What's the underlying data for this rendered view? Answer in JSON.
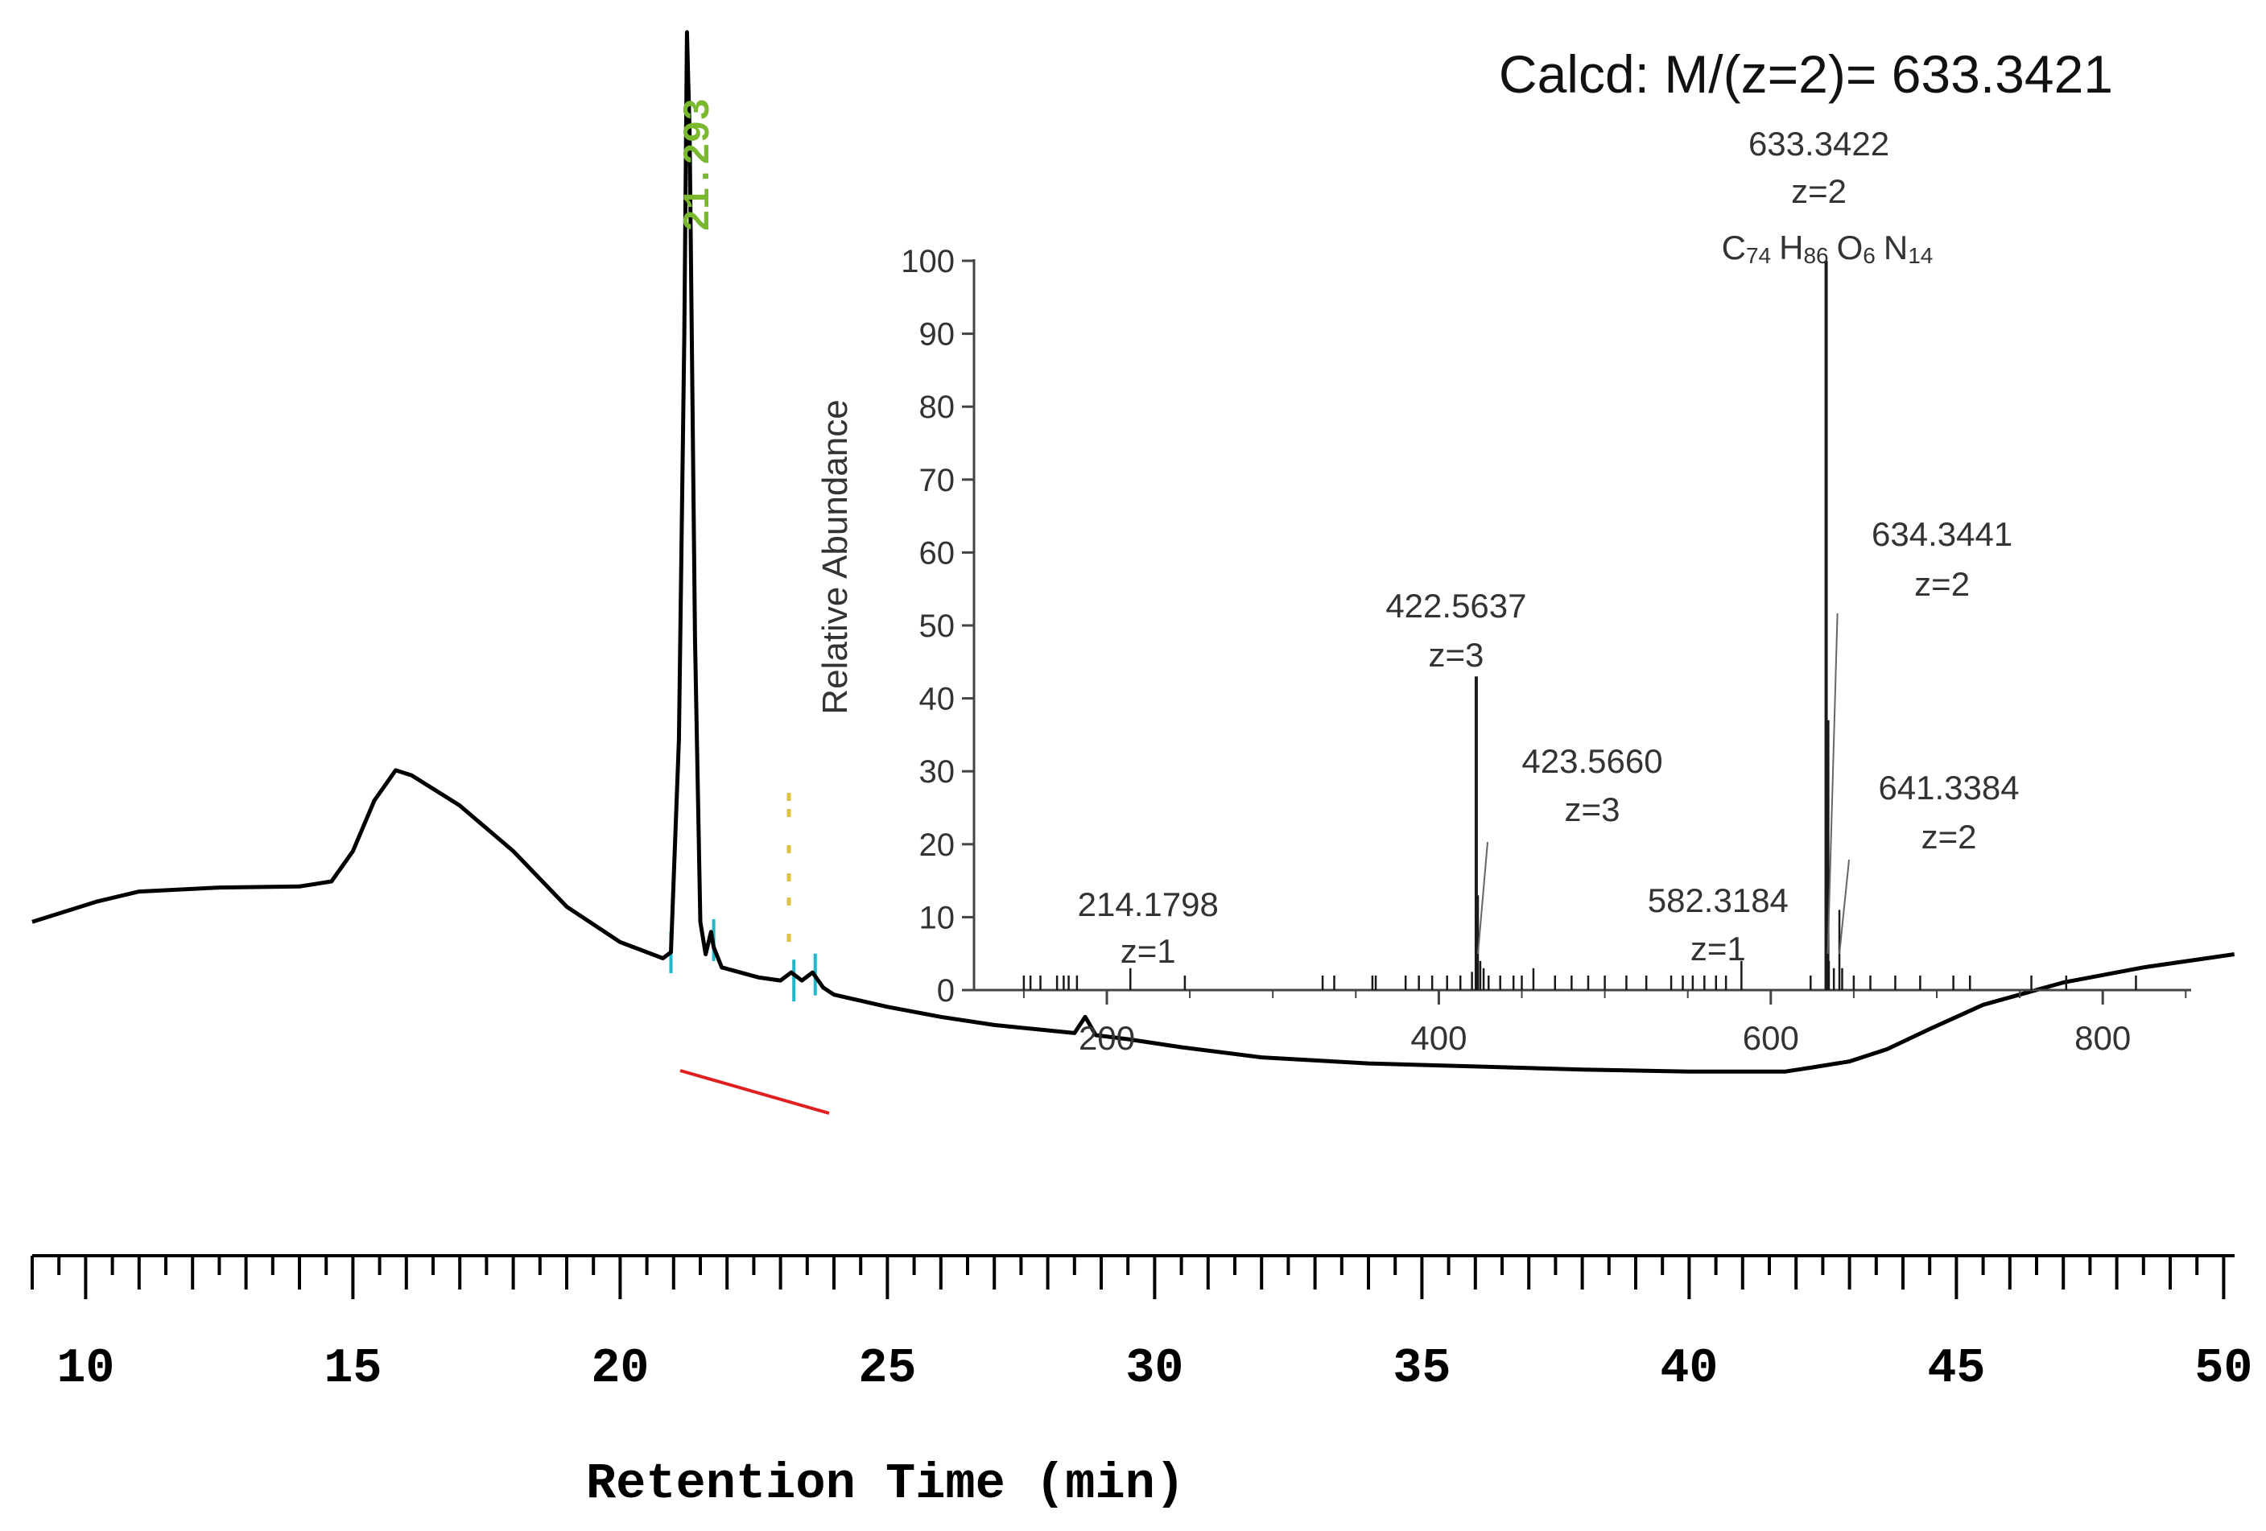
{
  "chart_data": [
    {
      "type": "line",
      "name": "chromatogram",
      "xlabel": "Retention Time (min)",
      "xlim": [
        9,
        50.2
      ],
      "ylim": [
        0,
        100
      ],
      "x_ticks": [
        10,
        15,
        20,
        25,
        30,
        35,
        40,
        45,
        50
      ],
      "trace": [
        [
          9.0,
          12
        ],
        [
          9.6,
          13
        ],
        [
          10.2,
          14
        ],
        [
          11.0,
          15
        ],
        [
          12.5,
          15.4
        ],
        [
          14.0,
          15.5
        ],
        [
          14.6,
          16
        ],
        [
          15.0,
          19
        ],
        [
          15.4,
          24
        ],
        [
          15.8,
          27
        ],
        [
          16.1,
          26.5
        ],
        [
          17.0,
          23.5
        ],
        [
          18.0,
          19
        ],
        [
          19.0,
          13.5
        ],
        [
          20.0,
          10
        ],
        [
          20.8,
          8.4
        ],
        [
          20.95,
          9
        ],
        [
          21.1,
          30
        ],
        [
          21.2,
          70
        ],
        [
          21.25,
          100
        ],
        [
          21.3,
          90
        ],
        [
          21.4,
          40
        ],
        [
          21.5,
          12
        ],
        [
          21.6,
          8.8
        ],
        [
          21.7,
          11
        ],
        [
          21.75,
          9.5
        ],
        [
          21.9,
          7.5
        ],
        [
          22.6,
          6.5
        ],
        [
          23.0,
          6.2
        ],
        [
          23.2,
          7.0
        ],
        [
          23.4,
          6.2
        ],
        [
          23.6,
          7.0
        ],
        [
          23.8,
          5.5
        ],
        [
          24.0,
          4.8
        ],
        [
          25.0,
          3.6
        ],
        [
          26.0,
          2.6
        ],
        [
          27.0,
          1.8
        ],
        [
          28.5,
          1.0
        ],
        [
          28.7,
          2.6
        ],
        [
          28.9,
          0.8
        ],
        [
          29.5,
          0.4
        ],
        [
          30.5,
          -0.4
        ],
        [
          32.0,
          -1.4
        ],
        [
          34.0,
          -2.0
        ],
        [
          36.0,
          -2.3
        ],
        [
          38.0,
          -2.6
        ],
        [
          40.0,
          -2.8
        ],
        [
          41.8,
          -2.8
        ],
        [
          42.3,
          -2.4
        ],
        [
          43.0,
          -1.8
        ],
        [
          43.7,
          -0.6
        ],
        [
          44.5,
          1.4
        ],
        [
          45.5,
          3.8
        ],
        [
          47.0,
          6.0
        ],
        [
          48.5,
          7.5
        ],
        [
          50.2,
          8.8
        ]
      ],
      "peak_label": "21.293",
      "peak_label_color": "#7ab830",
      "minor_peak_label_color": "#e0c040",
      "trace_color": "#000000",
      "baseline_color": "#e02020",
      "marker_color": "#20b8c8"
    },
    {
      "type": "bar",
      "name": "mass-spectrum",
      "title": "Calcd: M/(z=2)= 633.3421",
      "ylabel": "Relative Abundance",
      "xlim": [
        125,
        850
      ],
      "ylim": [
        0,
        100
      ],
      "x_ticks": [
        200,
        400,
        600,
        800
      ],
      "y_ticks": [
        0,
        10,
        20,
        30,
        40,
        50,
        60,
        70,
        80,
        90,
        100
      ],
      "stick_color": "#1a1a1a",
      "peaks": [
        [
          150,
          2
        ],
        [
          154,
          2
        ],
        [
          160,
          2
        ],
        [
          170,
          2
        ],
        [
          174,
          2
        ],
        [
          177,
          2
        ],
        [
          182,
          2
        ],
        [
          214.1798,
          3
        ],
        [
          247,
          2
        ],
        [
          330,
          2
        ],
        [
          337,
          2
        ],
        [
          360,
          2
        ],
        [
          362,
          2
        ],
        [
          380,
          2
        ],
        [
          388,
          2
        ],
        [
          396,
          2
        ],
        [
          405,
          2
        ],
        [
          413,
          2
        ],
        [
          420,
          2.5
        ],
        [
          422.5637,
          43
        ],
        [
          423.566,
          13
        ],
        [
          425,
          4
        ],
        [
          427,
          3
        ],
        [
          430,
          2
        ],
        [
          437,
          2
        ],
        [
          445,
          2
        ],
        [
          450,
          2
        ],
        [
          457,
          3
        ],
        [
          470,
          2
        ],
        [
          480,
          2
        ],
        [
          490,
          2
        ],
        [
          500,
          2
        ],
        [
          513,
          2
        ],
        [
          525,
          2
        ],
        [
          540,
          2
        ],
        [
          547,
          2
        ],
        [
          553,
          2
        ],
        [
          560,
          2
        ],
        [
          567,
          2
        ],
        [
          573,
          2
        ],
        [
          582.3184,
          4
        ],
        [
          624,
          2
        ],
        [
          633.3422,
          100
        ],
        [
          634.3441,
          37
        ],
        [
          635,
          4
        ],
        [
          638,
          3
        ],
        [
          641.3384,
          11
        ],
        [
          643,
          3
        ],
        [
          650,
          2
        ],
        [
          660,
          2
        ],
        [
          675,
          2
        ],
        [
          690,
          2
        ],
        [
          710,
          2
        ],
        [
          720,
          2
        ],
        [
          757,
          2
        ],
        [
          778,
          2
        ],
        [
          820,
          2
        ]
      ],
      "annotations": [
        {
          "mz": "214.1798",
          "charge": "z=1"
        },
        {
          "mz": "422.5637",
          "charge": "z=3"
        },
        {
          "mz": "423.5660",
          "charge": "z=3"
        },
        {
          "mz": "582.3184",
          "charge": "z=1"
        },
        {
          "mz": "633.3422",
          "charge": "z=2"
        },
        {
          "mz": "634.3441",
          "charge": "z=2"
        },
        {
          "mz": "641.3384",
          "charge": "z=2"
        }
      ],
      "formula": {
        "c": "C",
        "c_n": "74",
        "h": "H",
        "h_n": "86",
        "o": "O",
        "o_n": "6",
        "n": "N",
        "n_n": "14"
      }
    }
  ]
}
